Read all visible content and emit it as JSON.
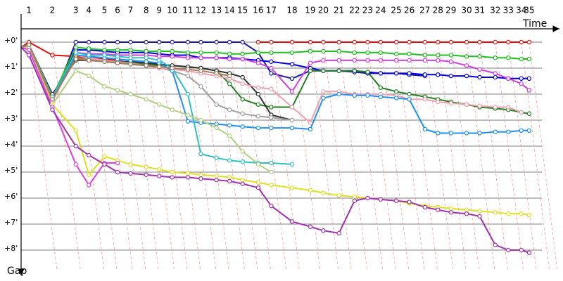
{
  "chart_data": {
    "type": "line",
    "x_label": "Time",
    "y_label": "Gap",
    "x": [
      0,
      0.3,
      1.2,
      2.1,
      2.6,
      3.2,
      3.7,
      4.2,
      4.8,
      5.3,
      5.8,
      6.4,
      6.9,
      7.5,
      8.0,
      8.5,
      9.1,
      9.6,
      10.4,
      11.1,
      11.6,
      12.2,
      12.8,
      13.3,
      13.8,
      14.4,
      14.9,
      15.5,
      16.0,
      16.5,
      17.1,
      17.6,
      18.2,
      18.7,
      19.2,
      19.5
    ],
    "xlim": [
      0,
      20.8
    ],
    "xticks": [
      {
        "value": 0.3,
        "label": "1"
      },
      {
        "value": 1.2,
        "label": "2"
      },
      {
        "value": 2.1,
        "label": "3"
      },
      {
        "value": 2.6,
        "label": "4"
      },
      {
        "value": 3.2,
        "label": "5"
      },
      {
        "value": 3.7,
        "label": "6"
      },
      {
        "value": 4.2,
        "label": "7"
      },
      {
        "value": 4.8,
        "label": "8"
      },
      {
        "value": 5.3,
        "label": "9"
      },
      {
        "value": 5.8,
        "label": "10"
      },
      {
        "value": 6.4,
        "label": "11"
      },
      {
        "value": 6.9,
        "label": "12"
      },
      {
        "value": 7.5,
        "label": "13"
      },
      {
        "value": 8.0,
        "label": "14"
      },
      {
        "value": 8.5,
        "label": "15"
      },
      {
        "value": 9.1,
        "label": "16"
      },
      {
        "value": 9.6,
        "label": "17"
      },
      {
        "value": 10.4,
        "label": "18"
      },
      {
        "value": 11.1,
        "label": "19"
      },
      {
        "value": 11.6,
        "label": "20"
      },
      {
        "value": 12.2,
        "label": "21"
      },
      {
        "value": 12.8,
        "label": "22"
      },
      {
        "value": 13.3,
        "label": "23"
      },
      {
        "value": 13.8,
        "label": "24"
      },
      {
        "value": 14.4,
        "label": "25"
      },
      {
        "value": 14.9,
        "label": "26"
      },
      {
        "value": 15.5,
        "label": "27"
      },
      {
        "value": 16.0,
        "label": "28"
      },
      {
        "value": 16.5,
        "label": "29"
      },
      {
        "value": 17.1,
        "label": "30"
      },
      {
        "value": 17.6,
        "label": "31"
      },
      {
        "value": 18.2,
        "label": "32"
      },
      {
        "value": 18.7,
        "label": "33"
      },
      {
        "value": 19.2,
        "label": "34"
      },
      {
        "value": 19.5,
        "label": "35"
      }
    ],
    "ylim": [
      -0.5,
      8.8
    ],
    "yticks": [
      {
        "value": 0,
        "label": "+0'"
      },
      {
        "value": 1,
        "label": "+1'"
      },
      {
        "value": 2,
        "label": "+2'"
      },
      {
        "value": 3,
        "label": "+3'"
      },
      {
        "value": 4,
        "label": "+4'"
      },
      {
        "value": 5,
        "label": "+5'"
      },
      {
        "value": 6,
        "label": "+6'"
      },
      {
        "value": 7,
        "label": "+7'"
      },
      {
        "value": 8,
        "label": "+8'"
      }
    ],
    "grid": true,
    "series": [
      {
        "color": "#e01010",
        "values": [
          0.2,
          0,
          0.5,
          0.55,
          0.6,
          0.65,
          0.7,
          0.8,
          0.9,
          null,
          null,
          null,
          null,
          null,
          null,
          null,
          0,
          0,
          0,
          0,
          0,
          0,
          0,
          0,
          0,
          0,
          0,
          0,
          0,
          0,
          0,
          0,
          0,
          0,
          0,
          0
        ]
      },
      {
        "color": "#1a1aa0",
        "values": [
          0.2,
          0.1,
          2.3,
          0,
          0,
          0,
          0,
          0,
          0,
          0,
          0,
          0,
          0,
          0,
          0,
          0,
          0.4,
          1.2,
          1.4,
          1.1,
          1.1,
          1.1,
          1.15,
          1.2,
          1.2,
          1.2,
          1.25,
          1.3,
          null,
          null,
          null,
          null,
          null,
          null,
          null,
          null
        ]
      },
      {
        "color": "#0000e0",
        "values": [
          0.2,
          0.1,
          2.2,
          0.3,
          0.3,
          0.35,
          0.4,
          0.4,
          0.4,
          0.45,
          0.5,
          0.5,
          0.6,
          0.6,
          0.6,
          0.65,
          0.7,
          0.75,
          0.85,
          1.0,
          1.1,
          1.1,
          1.1,
          1.15,
          1.2,
          1.2,
          1.2,
          1.25,
          1.25,
          1.3,
          1.3,
          1.35,
          1.35,
          1.4,
          1.4,
          1.4
        ]
      },
      {
        "color": "#20c020",
        "values": [
          0.2,
          0.1,
          2.1,
          0.2,
          0.25,
          0.3,
          0.3,
          0.3,
          0.35,
          0.35,
          0.35,
          0.4,
          0.4,
          0.4,
          0.45,
          0.45,
          0.4,
          0.4,
          0.4,
          0.35,
          0.35,
          0.35,
          0.4,
          0.4,
          0.4,
          0.45,
          0.45,
          0.5,
          0.5,
          0.5,
          0.55,
          0.55,
          0.6,
          0.6,
          0.65,
          0.65
        ]
      },
      {
        "color": "#d040e0",
        "values": [
          0.2,
          0.1,
          2.2,
          0.4,
          0.45,
          0.45,
          0.5,
          0.5,
          0.5,
          0.55,
          0.55,
          0.6,
          0.6,
          0.6,
          0.65,
          0.65,
          0.8,
          1.0,
          1.9,
          0.8,
          0.7,
          0.7,
          0.7,
          0.7,
          0.7,
          0.7,
          0.7,
          0.7,
          0.7,
          0.75,
          0.9,
          1.05,
          1.2,
          1.4,
          1.6,
          1.85
        ]
      },
      {
        "color": "#208020",
        "values": [
          0.2,
          0.1,
          2.1,
          0.6,
          0.65,
          0.7,
          0.75,
          0.8,
          0.85,
          0.9,
          0.9,
          0.95,
          1.0,
          1.1,
          1.6,
          2.2,
          2.4,
          2.5,
          2.5,
          1.1,
          1.1,
          1.1,
          1.1,
          1.15,
          1.75,
          1.9,
          2.0,
          2.1,
          2.2,
          2.3,
          2.4,
          2.5,
          2.55,
          2.6,
          2.7,
          2.75
        ]
      },
      {
        "color": "#303030",
        "values": [
          0.2,
          0.1,
          2.0,
          0.7,
          0.7,
          0.72,
          0.75,
          0.75,
          0.8,
          0.85,
          0.9,
          0.95,
          1.0,
          1.1,
          1.2,
          1.35,
          2.0,
          2.8,
          3.0,
          null,
          null,
          null,
          null,
          null,
          null,
          null,
          null,
          null,
          null,
          null,
          null,
          null,
          null,
          null,
          null,
          null
        ]
      },
      {
        "color": "#a0a0a0",
        "values": [
          0.2,
          0.1,
          2.1,
          0.6,
          0.65,
          0.7,
          0.75,
          0.8,
          0.9,
          1.0,
          1.1,
          1.3,
          1.7,
          2.4,
          2.6,
          2.75,
          2.85,
          2.9,
          3.0,
          null,
          null,
          null,
          null,
          null,
          null,
          null,
          null,
          null,
          null,
          null,
          null,
          null,
          null,
          null,
          null,
          null
        ]
      },
      {
        "color": "#f0a0b0",
        "values": [
          0.2,
          0.1,
          2.3,
          0.5,
          0.6,
          0.7,
          0.8,
          0.85,
          0.9,
          1.0,
          1.05,
          1.1,
          1.2,
          1.3,
          1.4,
          1.6,
          1.75,
          1.8,
          2.5,
          3.1,
          1.9,
          1.9,
          2.0,
          2.0,
          2.0,
          2.05,
          2.2,
          2.2,
          2.3,
          2.35,
          2.4,
          2.45,
          2.5,
          2.5,
          2.7,
          null
        ]
      },
      {
        "color": "#2090f0",
        "values": [
          0.2,
          0.1,
          2.2,
          0.5,
          0.55,
          0.6,
          0.65,
          0.7,
          0.75,
          0.8,
          1.1,
          3.05,
          3.1,
          3.15,
          3.2,
          3.25,
          3.3,
          3.3,
          3.3,
          3.35,
          2.15,
          2.0,
          2.05,
          2.05,
          2.1,
          2.15,
          2.2,
          3.35,
          3.5,
          3.5,
          3.5,
          3.5,
          3.45,
          3.45,
          3.4,
          3.4
        ]
      },
      {
        "color": "#30c0c0",
        "values": [
          0.2,
          0.1,
          2.1,
          0.4,
          0.5,
          0.5,
          0.55,
          0.6,
          0.6,
          0.7,
          1.0,
          2.0,
          4.3,
          4.45,
          4.55,
          4.6,
          4.65,
          4.65,
          4.7,
          null,
          null,
          null,
          null,
          null,
          null,
          null,
          null,
          null,
          null,
          null,
          null,
          null,
          null,
          null,
          null,
          null
        ]
      },
      {
        "color": "#b0d080",
        "values": [
          0.2,
          0.2,
          2.4,
          1.1,
          1.3,
          1.7,
          1.85,
          2.0,
          2.2,
          2.4,
          2.6,
          2.8,
          3.0,
          3.3,
          3.6,
          4.2,
          4.7,
          5.0,
          null,
          null,
          null,
          null,
          null,
          null,
          null,
          null,
          null,
          null,
          null,
          null,
          null,
          null,
          null,
          null,
          null,
          null
        ]
      },
      {
        "color": "#c06020",
        "values": [
          0.2,
          0.1,
          2.2,
          0.6,
          0.7,
          0.75,
          0.8,
          0.85,
          0.9,
          0.95,
          null,
          null,
          null,
          null,
          null,
          null,
          null,
          null,
          null,
          null,
          null,
          null,
          null,
          null,
          null,
          null,
          null,
          null,
          null,
          null,
          null,
          null,
          null,
          null,
          null,
          null
        ]
      },
      {
        "color": "#a08060",
        "values": [
          0.2,
          0.1,
          2.2,
          0.65,
          0.7,
          0.75,
          0.8,
          0.85,
          0.9,
          0.95,
          1.0,
          1.05,
          1.1,
          1.2,
          1.3,
          null,
          null,
          null,
          null,
          null,
          null,
          null,
          null,
          null,
          null,
          null,
          null,
          null,
          null,
          null,
          null,
          null,
          null,
          null,
          null,
          null
        ]
      },
      {
        "color": "#e0e020",
        "values": [
          0.2,
          0.3,
          2.4,
          3.4,
          5.1,
          4.4,
          4.55,
          4.7,
          4.8,
          4.9,
          5.0,
          5.05,
          5.1,
          5.15,
          5.2,
          5.3,
          5.4,
          5.5,
          5.6,
          5.7,
          5.8,
          5.9,
          5.95,
          6.0,
          6.05,
          6.1,
          6.2,
          6.3,
          6.35,
          6.4,
          6.45,
          6.5,
          6.55,
          6.6,
          6.6,
          6.65
        ]
      },
      {
        "color": "#e040e0",
        "values": [
          0.2,
          0.3,
          2.5,
          4.7,
          5.5,
          4.65,
          4.65,
          null,
          null,
          null,
          null,
          null,
          null,
          null,
          null,
          null,
          null,
          null,
          null,
          null,
          null,
          null,
          null,
          null,
          null,
          null,
          null,
          null,
          null,
          null,
          null,
          null,
          null,
          null,
          null,
          null
        ]
      },
      {
        "color": "#a030b0",
        "values": [
          0.2,
          0.5,
          2.6,
          4.0,
          4.35,
          4.7,
          5.0,
          5.05,
          5.1,
          5.15,
          5.2,
          5.2,
          5.25,
          5.3,
          5.35,
          5.45,
          5.6,
          6.3,
          6.9,
          7.1,
          7.25,
          7.35,
          6.1,
          6.0,
          6.05,
          6.1,
          6.15,
          6.35,
          6.45,
          6.55,
          6.6,
          6.7,
          7.8,
          8.0,
          8.0,
          8.1
        ]
      }
    ]
  }
}
